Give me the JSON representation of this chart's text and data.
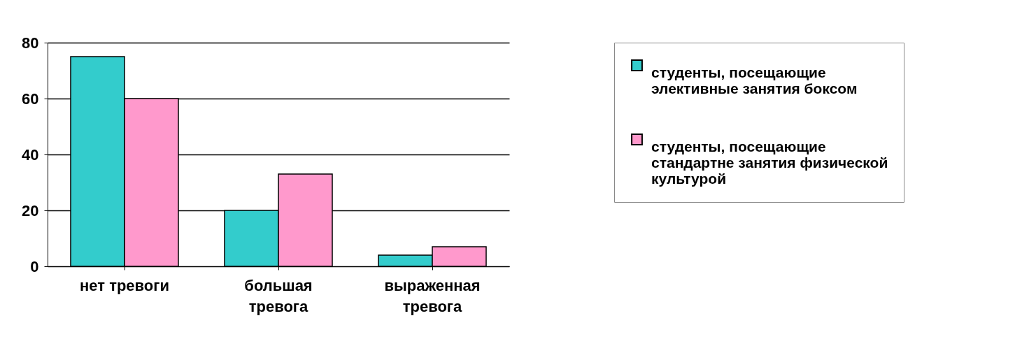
{
  "chart_data": {
    "type": "bar",
    "categories": [
      "нет тревоги",
      "большая тревога",
      "выраженная тревога"
    ],
    "series": [
      {
        "name": "студенты, посещающие элективные занятия боксом",
        "color": "#33cccc",
        "values": [
          75,
          20,
          4
        ]
      },
      {
        "name": "студенты, посещающие стандартне занятия физической культурой",
        "color": "#ff99cc",
        "values": [
          60,
          33,
          7
        ]
      }
    ],
    "ylim": [
      0,
      80
    ],
    "yticks": [
      0,
      20,
      40,
      60,
      80
    ],
    "grid": "y",
    "legend": "right"
  }
}
